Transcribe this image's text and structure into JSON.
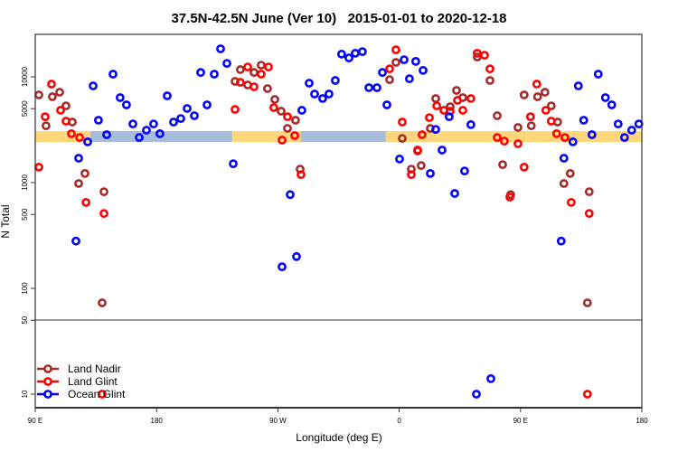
{
  "chart_data": {
    "type": "scatter",
    "title": "37.5N-42.5N June (Ver 10)   2015-01-01 to 2020-12-18",
    "xlabel": "Longitude (deg E)",
    "ylabel": "N Total",
    "x_ticks": [
      {
        "lon": 90,
        "label": "90 E"
      },
      {
        "lon": 180,
        "label": "180"
      },
      {
        "lon": -90,
        "label": "90 W"
      },
      {
        "lon": 0,
        "label": "0"
      },
      {
        "lon": 90,
        "label": "90 E",
        "wrap": true
      },
      {
        "lon": 180,
        "label": "180",
        "wrap": true
      }
    ],
    "xlim": [
      "90 E",
      "180 (after one full wrap)"
    ],
    "y_scale": "log",
    "ylim": [
      7,
      25000
    ],
    "y_ticks": [
      10,
      50,
      100,
      500,
      1000,
      5000,
      10000
    ],
    "reference_line": 50,
    "legend_position": "bottom-left",
    "map_strip": {
      "land_color": "#ffd77a",
      "ocean_color": "#a6bddb",
      "land_lon_ranges": [
        [
          -124,
          -73
        ],
        [
          -10,
          131
        ]
      ]
    },
    "series": [
      {
        "name": "Land Nadir",
        "color": "#a52a2a",
        "points": [
          [
            92.7,
            6750
          ],
          [
            98.0,
            3450
          ],
          [
            102.7,
            6490
          ],
          [
            108.1,
            7160
          ],
          [
            112.8,
            5320
          ],
          [
            117.5,
            3740
          ],
          [
            122.2,
            980
          ],
          [
            126.9,
            1220
          ],
          [
            141.0,
            820
          ],
          [
            139.6,
            73
          ],
          [
            -117.8,
            11700
          ],
          [
            -107.7,
            11000
          ],
          [
            -102.4,
            12900
          ],
          [
            -121.8,
            9060
          ],
          [
            -112.4,
            8380
          ],
          [
            -97.7,
            7740
          ],
          [
            -92.3,
            6110
          ],
          [
            -87.6,
            4730
          ],
          [
            -76.9,
            3890
          ],
          [
            -82.9,
            3260
          ],
          [
            -73.5,
            1340
          ],
          [
            -2.4,
            13700
          ],
          [
            -7.1,
            9400
          ],
          [
            2.3,
            2620
          ],
          [
            9.0,
            1340
          ],
          [
            16.3,
            1450
          ],
          [
            13.7,
            1990
          ],
          [
            23.1,
            3260
          ],
          [
            27.1,
            6230
          ],
          [
            57.9,
            15400
          ],
          [
            67.3,
            9250
          ],
          [
            42.5,
            7450
          ],
          [
            47.2,
            6360
          ],
          [
            37.8,
            5220
          ],
          [
            72.7,
            4290
          ],
          [
            76.7,
            1480
          ],
          [
            82.7,
            770
          ],
          [
            88.1,
            3320
          ]
        ]
      },
      {
        "name": "Land Glint",
        "color": "#ff0000",
        "points": [
          [
            92.7,
            1400
          ],
          [
            97.4,
            4200
          ],
          [
            102.1,
            8550
          ],
          [
            108.8,
            4830
          ],
          [
            112.8,
            3810
          ],
          [
            116.8,
            2900
          ],
          [
            122.9,
            2670
          ],
          [
            127.6,
            650
          ],
          [
            141.0,
            510
          ],
          [
            139.6,
            10
          ],
          [
            -112.4,
            12400
          ],
          [
            -97.0,
            12400
          ],
          [
            -102.4,
            10600
          ],
          [
            -117.8,
            8890
          ],
          [
            -107.7,
            8050
          ],
          [
            -121.8,
            4920
          ],
          [
            -93.0,
            5120
          ],
          [
            -82.9,
            4200
          ],
          [
            -77.5,
            2780
          ],
          [
            -86.9,
            2520
          ],
          [
            -72.8,
            1190
          ],
          [
            -2.4,
            18000
          ],
          [
            -7.1,
            11900
          ],
          [
            2.3,
            3740
          ],
          [
            17.0,
            2840
          ],
          [
            22.4,
            4120
          ],
          [
            13.7,
            2030
          ],
          [
            9.0,
            1190
          ],
          [
            57.9,
            16700
          ],
          [
            63.3,
            16000
          ],
          [
            67.3,
            11900
          ],
          [
            43.2,
            5990
          ],
          [
            53.2,
            6230
          ],
          [
            27.8,
            5320
          ],
          [
            33.1,
            4830
          ],
          [
            37.8,
            4730
          ],
          [
            47.2,
            4830
          ],
          [
            72.7,
            2670
          ],
          [
            78.0,
            2470
          ],
          [
            88.1,
            2330
          ],
          [
            82.1,
            730
          ]
        ]
      },
      {
        "name": "Ocean Glint",
        "color": "#0000ff",
        "points": [
          [
            128.9,
            2430
          ],
          [
            122.2,
            1700
          ],
          [
            120.2,
            280
          ],
          [
            132.9,
            8220
          ],
          [
            136.9,
            3890
          ],
          [
            143.0,
            2840
          ],
          [
            147.7,
            10600
          ],
          [
            153.0,
            6360
          ],
          [
            157.7,
            5430
          ],
          [
            162.4,
            3590
          ],
          [
            167.1,
            2670
          ],
          [
            172.5,
            3130
          ],
          [
            177.8,
            3590
          ],
          [
            -177.5,
            2900
          ],
          [
            -172.1,
            6620
          ],
          [
            -167.4,
            3740
          ],
          [
            -162.0,
            4040
          ],
          [
            -157.3,
            5020
          ],
          [
            -152.0,
            4290
          ],
          [
            -147.3,
            11000
          ],
          [
            -142.6,
            5430
          ],
          [
            -137.2,
            10600
          ],
          [
            -132.5,
            18400
          ],
          [
            -127.8,
            13400
          ],
          [
            -123.1,
            1510
          ],
          [
            -66.8,
            8710
          ],
          [
            -62.8,
            6880
          ],
          [
            -56.8,
            6230
          ],
          [
            -52.1,
            6880
          ],
          [
            -47.4,
            9250
          ],
          [
            -42.7,
            16400
          ],
          [
            -37.3,
            15100
          ],
          [
            -32.6,
            16700
          ],
          [
            -27.3,
            17300
          ],
          [
            -22.5,
            7890
          ],
          [
            -16.5,
            7890
          ],
          [
            -12.5,
            11000
          ],
          [
            -9.1,
            5430
          ],
          [
            -72.2,
            4830
          ],
          [
            -80.9,
            770
          ],
          [
            -86.9,
            160
          ],
          [
            -76.2,
            200
          ],
          [
            3.6,
            14500
          ],
          [
            12.3,
            14000
          ],
          [
            7.6,
            9600
          ],
          [
            17.7,
            11500
          ],
          [
            0.3,
            1670
          ],
          [
            23.1,
            1220
          ],
          [
            37.1,
            4200
          ],
          [
            27.1,
            3190
          ],
          [
            53.2,
            3530
          ],
          [
            31.8,
            2030
          ],
          [
            48.5,
            1290
          ],
          [
            41.2,
            790
          ],
          [
            57.3,
            10
          ],
          [
            68.0,
            14
          ]
        ]
      }
    ]
  }
}
